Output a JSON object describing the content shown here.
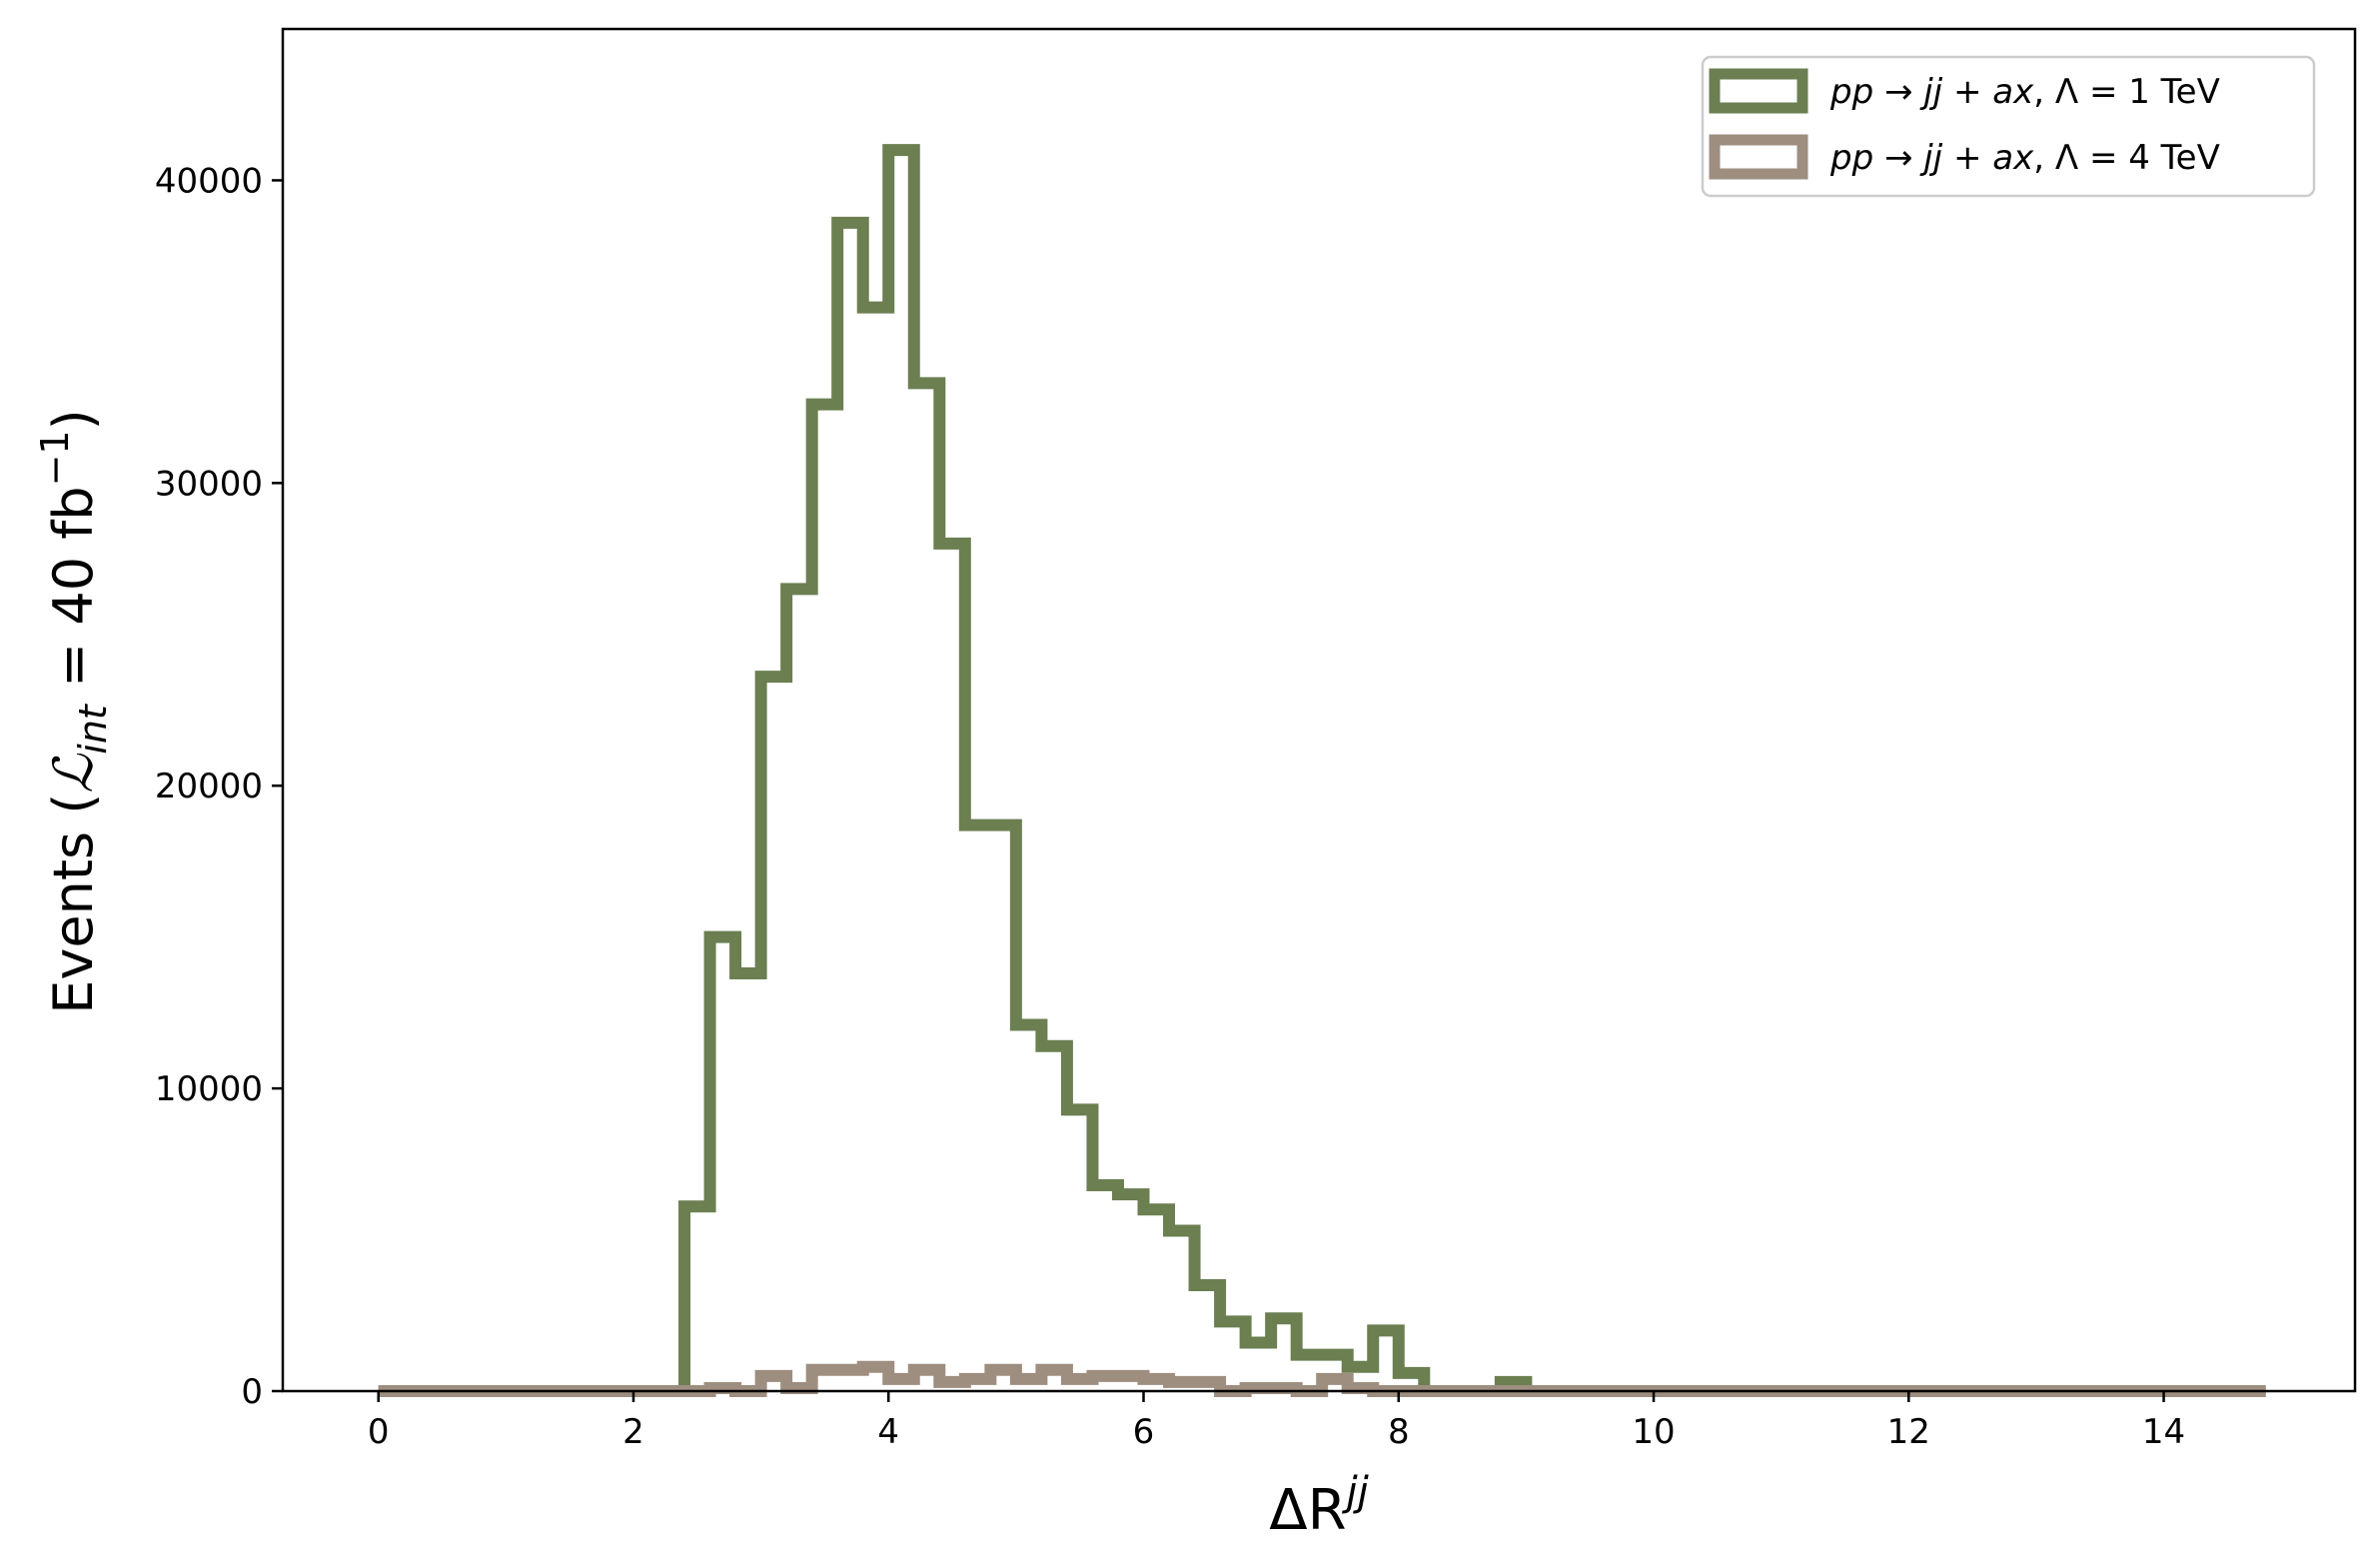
{
  "chart_data": {
    "type": "histogram-step",
    "xlabel": "ΔR^jj",
    "ylabel": "Events (ℒ_int = 40 fb⁻¹)",
    "xlim": [
      -0.75,
      15.5
    ],
    "ylim": [
      0,
      45000
    ],
    "xticks": [
      0,
      2,
      4,
      6,
      8,
      10,
      12,
      14
    ],
    "yticks": [
      0,
      10000,
      20000,
      30000,
      40000
    ],
    "bin_edges": [
      0,
      0.2,
      0.4,
      0.6,
      0.8,
      1.0,
      1.2,
      1.4,
      1.6,
      1.8,
      2.0,
      2.2,
      2.4,
      2.6,
      2.8,
      3.0,
      3.2,
      3.4,
      3.6,
      3.8,
      4.0,
      4.2,
      4.4,
      4.6,
      4.8,
      5.0,
      5.2,
      5.4,
      5.6,
      5.8,
      6.0,
      6.2,
      6.4,
      6.6,
      6.8,
      7.0,
      7.2,
      7.4,
      7.6,
      7.8,
      8.0,
      8.2,
      8.4,
      8.6,
      8.8,
      9.0,
      9.2,
      9.4,
      9.6,
      9.8,
      10.0,
      10.2,
      10.4,
      10.6,
      10.8,
      11.0,
      11.2,
      11.4,
      11.6,
      11.8,
      12.0,
      12.2,
      12.4,
      12.6,
      12.8,
      13.0,
      13.2,
      13.4,
      13.6,
      13.8,
      14.0,
      14.2,
      14.4,
      14.6,
      14.8
    ],
    "series": [
      {
        "name": "pp → jj + ax, Λ = 1 TeV",
        "color": "#6b7f51",
        "values": [
          0,
          0,
          0,
          0,
          0,
          0,
          0,
          0,
          0,
          0,
          0,
          0,
          6100,
          15000,
          13800,
          23600,
          26500,
          32600,
          38600,
          35800,
          41000,
          33300,
          28000,
          18700,
          18700,
          12100,
          11400,
          9300,
          6800,
          6500,
          6000,
          5300,
          3500,
          2300,
          1600,
          2400,
          1200,
          1200,
          800,
          2000,
          600,
          0,
          0,
          0,
          300,
          0,
          0,
          0,
          0,
          0,
          0,
          0,
          0,
          0,
          0,
          0,
          0,
          0,
          0,
          0,
          0,
          0,
          0,
          0,
          0,
          0,
          0,
          0,
          0,
          0,
          0,
          0,
          0,
          0
        ]
      },
      {
        "name": "pp → jj + ax, Λ = 4 TeV",
        "color": "#9e8e80",
        "values": [
          0,
          0,
          0,
          0,
          0,
          0,
          0,
          0,
          0,
          0,
          0,
          0,
          0,
          100,
          0,
          500,
          100,
          700,
          700,
          800,
          400,
          700,
          300,
          400,
          700,
          400,
          700,
          400,
          500,
          500,
          400,
          300,
          300,
          0,
          100,
          100,
          0,
          400,
          100,
          0,
          0,
          0,
          0,
          0,
          0,
          0,
          0,
          0,
          0,
          0,
          0,
          0,
          0,
          0,
          0,
          0,
          0,
          0,
          0,
          0,
          0,
          0,
          0,
          0,
          0,
          0,
          0,
          0,
          0,
          0,
          0,
          0,
          0,
          0
        ]
      }
    ],
    "legend": {
      "placement": "top-right",
      "entries": [
        "pp → jj + ax, Λ = 1 TeV",
        "pp → jj + ax, Λ = 4 TeV"
      ]
    },
    "grid": false
  }
}
